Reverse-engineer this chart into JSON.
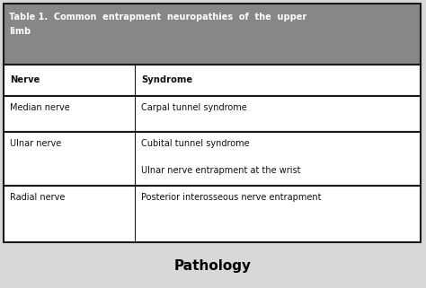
{
  "title_line1": "Table 1.  Common  entrapment  neuropathies  of  the  upper",
  "title_line2": "limb",
  "caption": "Pathology",
  "header": [
    "Nerve",
    "Syndrome"
  ],
  "rows": [
    [
      "Median nerve",
      "Carpal tunnel syndrome"
    ],
    [
      "Ulnar nerve",
      "Cubital tunnel syndrome\n\nUlnar nerve entrapment at the wrist"
    ],
    [
      "Radial nerve",
      "Posterior interosseous nerve entrapment"
    ]
  ],
  "header_bg": "#878787",
  "header_text_color": "#ffffff",
  "table_bg": "#ffffff",
  "border_color": "#1a1a1a",
  "text_color": "#111111",
  "caption_color": "#000000",
  "col_split": 0.315,
  "fig_bg": "#d8d8d8",
  "outer_bg": "#d8d8d8"
}
